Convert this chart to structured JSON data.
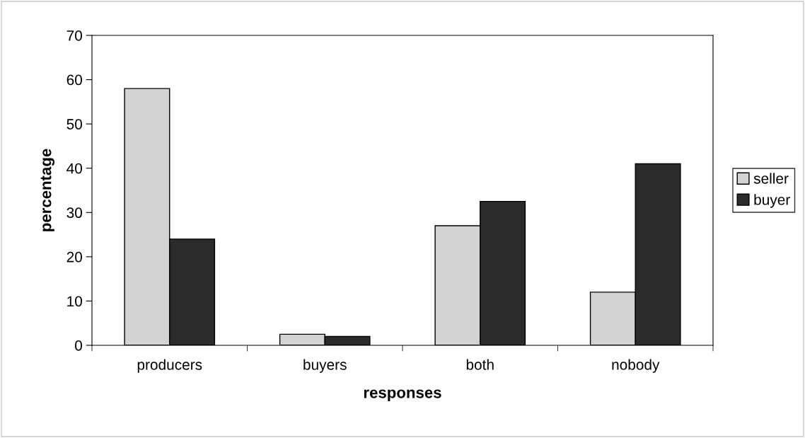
{
  "chart_data": {
    "type": "bar",
    "xlabel": "responses",
    "ylabel": "percentage",
    "categories": [
      "producers",
      "buyers",
      "both",
      "nobody"
    ],
    "series": [
      {
        "name": "seller",
        "color": "#d3d3d3",
        "values": [
          58,
          2.5,
          27,
          12
        ]
      },
      {
        "name": "buyer",
        "color": "#2b2b2b",
        "values": [
          24,
          2,
          32.5,
          41
        ]
      }
    ],
    "ylim": [
      0,
      70
    ],
    "yticks": [
      0,
      10,
      20,
      30,
      40,
      50,
      60,
      70
    ],
    "grid": false,
    "legend": "right"
  }
}
